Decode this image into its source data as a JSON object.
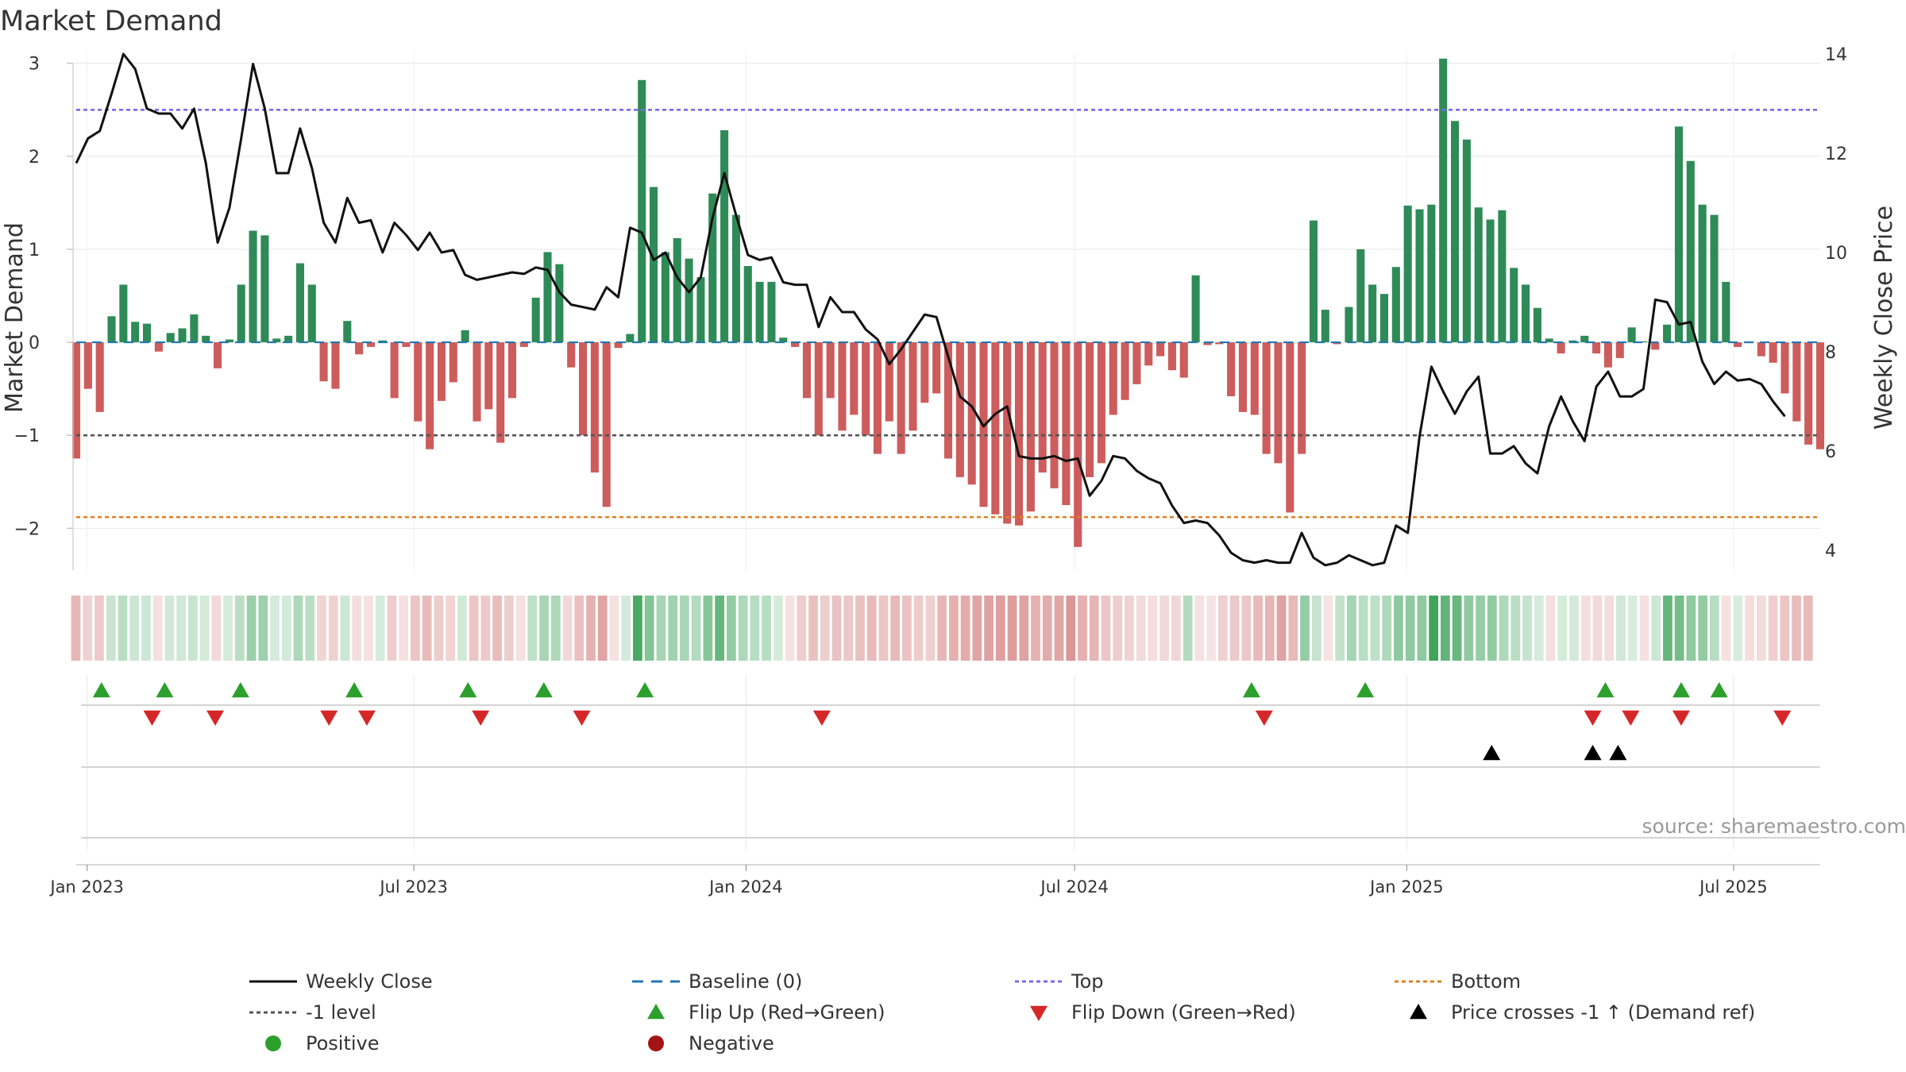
{
  "title": "Market Demand",
  "source": "source: sharemaestro.com",
  "colors": {
    "positive_bar": "#2e8b57",
    "negative_bar": "#cd5c5c",
    "price_line": "#111111",
    "baseline": "#1f77b4",
    "top": "#7b68ee",
    "minus1": "#555555",
    "bottom": "#e08020",
    "flip_up": "#2ca02c",
    "flip_down": "#d62728",
    "cross": "#000000",
    "positive_dot": "#2ca02c",
    "negative_dot": "#a31515"
  },
  "chart_data": {
    "type": "bar",
    "title": "Market Demand",
    "ylabel": "Market Demand",
    "y2label": "Weekly Close Price",
    "ylim": [
      -2.45,
      3.1
    ],
    "y2lim": [
      3.6,
      14.0
    ],
    "y_ticks": [
      3,
      2,
      1,
      0,
      -1,
      -2
    ],
    "y_tick_labels": [
      "3",
      "2",
      "1",
      "0",
      "−1",
      "−2"
    ],
    "y2_ticks": [
      14,
      12,
      10,
      8,
      6,
      4
    ],
    "y2_tick_labels": [
      "14",
      "12",
      "10",
      "8",
      "6",
      "4"
    ],
    "x_start": "2022-12-26",
    "x_end": "2025-08-18",
    "x_ticks": [
      "2023-01-01",
      "2023-07-01",
      "2024-01-01",
      "2024-07-01",
      "2025-01-01",
      "2025-07-01"
    ],
    "x_tick_labels": [
      "Jan 2023",
      "Jul 2023",
      "Jan 2024",
      "Jul 2024",
      "Jan 2025",
      "Jul 2025"
    ],
    "grid": true,
    "reference_lines": {
      "top": 2.5,
      "minus1_level": -1.0,
      "bottom": -1.88,
      "baseline": 0
    },
    "demand": [
      -1.25,
      -0.5,
      -0.75,
      0.28,
      0.62,
      0.22,
      0.2,
      -0.1,
      0.1,
      0.15,
      0.3,
      0.07,
      -0.28,
      0.03,
      0.62,
      1.2,
      1.15,
      0.04,
      0.07,
      0.85,
      0.62,
      -0.42,
      -0.5,
      0.23,
      -0.13,
      -0.05,
      0.02,
      -0.6,
      -0.05,
      -0.85,
      -1.15,
      -0.63,
      -0.43,
      0.13,
      -0.85,
      -0.72,
      -1.08,
      -0.6,
      -0.05,
      0.48,
      0.97,
      0.84,
      -0.27,
      -1.0,
      -1.4,
      -1.77,
      -0.06,
      0.09,
      2.82,
      1.67,
      0.97,
      1.12,
      0.9,
      0.7,
      1.6,
      2.28,
      1.37,
      0.82,
      0.65,
      0.65,
      0.05,
      -0.05,
      -0.6,
      -1.0,
      -0.6,
      -0.95,
      -0.78,
      -1.0,
      -1.2,
      -0.85,
      -1.2,
      -0.95,
      -0.65,
      -0.55,
      -1.25,
      -1.45,
      -1.53,
      -1.77,
      -1.85,
      -1.95,
      -1.97,
      -1.82,
      -1.4,
      -1.57,
      -1.75,
      -2.2,
      -1.45,
      -1.3,
      -0.78,
      -0.62,
      -0.45,
      -0.25,
      -0.15,
      -0.3,
      -0.38,
      0.72,
      -0.03,
      -0.02,
      -0.58,
      -0.75,
      -0.78,
      -1.2,
      -1.3,
      -1.83,
      -1.2,
      1.31,
      0.35,
      -0.02,
      0.38,
      1.0,
      0.62,
      0.52,
      0.81,
      1.47,
      1.43,
      1.48,
      3.05,
      2.38,
      2.18,
      1.45,
      1.32,
      1.42,
      0.8,
      0.62,
      0.37,
      0.04,
      -0.12,
      0.02,
      0.07,
      -0.12,
      -0.27,
      -0.17,
      0.16,
      0.01,
      -0.08,
      0.19,
      2.32,
      1.95,
      1.48,
      1.37,
      0.65,
      -0.05,
      0.0,
      -0.15,
      -0.22,
      -0.55,
      -0.85,
      -1.1,
      -1.15
    ],
    "price": [
      11.8,
      12.3,
      12.45,
      13.2,
      14.0,
      13.7,
      12.9,
      12.8,
      12.8,
      12.5,
      12.9,
      11.8,
      10.2,
      10.9,
      12.3,
      13.8,
      12.9,
      11.6,
      11.6,
      12.5,
      11.7,
      10.6,
      10.2,
      11.1,
      10.6,
      10.65,
      10.0,
      10.6,
      10.35,
      10.05,
      10.4,
      10.0,
      10.05,
      9.55,
      9.45,
      9.5,
      9.55,
      9.6,
      9.57,
      9.7,
      9.65,
      9.2,
      8.95,
      8.9,
      8.85,
      9.3,
      9.1,
      10.5,
      10.4,
      9.85,
      10.0,
      9.5,
      9.2,
      9.5,
      10.7,
      11.6,
      10.75,
      9.95,
      9.85,
      9.9,
      9.4,
      9.35,
      9.35,
      8.5,
      9.1,
      8.8,
      8.8,
      8.45,
      8.25,
      7.75,
      8.05,
      8.4,
      8.75,
      8.7,
      7.9,
      7.1,
      6.9,
      6.5,
      6.75,
      6.9,
      5.9,
      5.85,
      5.85,
      5.9,
      5.8,
      5.85,
      5.1,
      5.4,
      5.9,
      5.85,
      5.6,
      5.45,
      5.35,
      4.9,
      4.55,
      4.6,
      4.55,
      4.3,
      3.95,
      3.8,
      3.75,
      3.8,
      3.75,
      3.75,
      4.35,
      3.85,
      3.7,
      3.75,
      3.9,
      3.8,
      3.7,
      3.75,
      4.5,
      4.35,
      6.3,
      7.7,
      7.2,
      6.75,
      7.2,
      7.5,
      5.95,
      5.95,
      6.1,
      5.75,
      5.55,
      6.5,
      7.1,
      6.6,
      6.2,
      7.3,
      7.6,
      7.1,
      7.1,
      7.25,
      9.05,
      9.0,
      8.55,
      8.6,
      7.8,
      7.35,
      7.6,
      7.42,
      7.45,
      7.35,
      7.0,
      6.7
    ],
    "flip_up": [
      "2023-01-09",
      "2023-02-13",
      "2023-03-27",
      "2023-05-29",
      "2023-07-31",
      "2023-09-11",
      "2023-11-06",
      "2024-10-07",
      "2024-12-09",
      "2025-04-21",
      "2025-06-02",
      "2025-06-23"
    ],
    "flip_down": [
      "2023-02-06",
      "2023-03-13",
      "2023-05-15",
      "2023-06-05",
      "2023-08-07",
      "2023-10-02",
      "2024-02-12",
      "2024-10-14",
      "2025-04-14",
      "2025-05-05",
      "2025-06-02",
      "2025-07-28"
    ],
    "price_crosses": [
      "2025-02-17",
      "2025-04-14",
      "2025-04-28"
    ]
  },
  "legend": [
    {
      "label": "Weekly Close",
      "symbol": "line-solid",
      "color": "#111111"
    },
    {
      "label": "Baseline (0)",
      "symbol": "line-dashed",
      "color": "#1f77b4"
    },
    {
      "label": "Top",
      "symbol": "line-dotted",
      "color": "#7b68ee"
    },
    {
      "label": "Bottom",
      "symbol": "line-dotted",
      "color": "#e08020"
    },
    {
      "label": "-1 level",
      "symbol": "line-dotted",
      "color": "#555555"
    },
    {
      "label": "Flip Up (Red→Green)",
      "symbol": "triangle-up",
      "color": "#2ca02c"
    },
    {
      "label": "Flip Down (Green→Red)",
      "symbol": "triangle-down",
      "color": "#d62728"
    },
    {
      "label": "Price crosses -1 ↑ (Demand ref)",
      "symbol": "triangle-up",
      "color": "#000000"
    },
    {
      "label": "Positive",
      "symbol": "dot",
      "color": "#2ca02c"
    },
    {
      "label": "Negative",
      "symbol": "dot",
      "color": "#a31515"
    }
  ]
}
